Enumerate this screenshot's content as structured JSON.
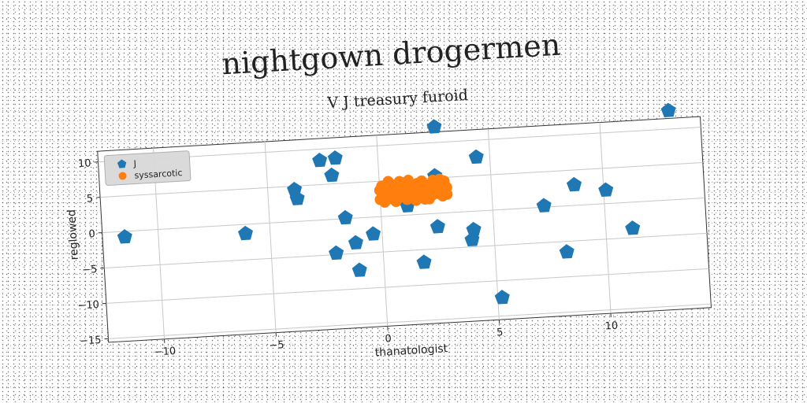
{
  "chart_data": {
    "type": "scatter",
    "title": "nightgown drogermen",
    "subtitle": "V J treasury furoid",
    "xlabel": "thanatologist",
    "ylabel": "reglowed",
    "xlim": [
      -12.5,
      14.5
    ],
    "ylim": [
      -15.5,
      11.5
    ],
    "xticks": [
      -10,
      -5,
      0,
      5,
      10
    ],
    "yticks": [
      -15,
      -10,
      -5,
      0,
      5,
      10
    ],
    "xtick_labels": [
      "−10",
      "−5",
      "0",
      "5",
      "10"
    ],
    "ytick_labels": [
      "−15",
      "−10",
      "−5",
      "0",
      "5",
      "10"
    ],
    "grid": true,
    "legend_position": "top-left",
    "series": [
      {
        "name": "J",
        "color": "#1f77b4",
        "marker": "pentagon",
        "points": [
          [
            -11.5,
            -0.8
          ],
          [
            -6.1,
            -1.3
          ],
          [
            -3.8,
            4.5
          ],
          [
            -3.7,
            3.2
          ],
          [
            -2.6,
            8.4
          ],
          [
            -1.9,
            8.6
          ],
          [
            -2.1,
            6.2
          ],
          [
            -1.6,
            0.1
          ],
          [
            -2.1,
            -4.8
          ],
          [
            -1.2,
            -3.5
          ],
          [
            -1.1,
            -7.4
          ],
          [
            -0.4,
            -2.4
          ],
          [
            1.2,
            1.3
          ],
          [
            1.8,
            -6.8
          ],
          [
            2.5,
            -1.9
          ],
          [
            2.5,
            5.3
          ],
          [
            2.6,
            12.2
          ],
          [
            4.0,
            -4.0
          ],
          [
            4.1,
            -2.6
          ],
          [
            4.4,
            7.6
          ],
          [
            5.2,
            -12.4
          ],
          [
            7.3,
            0.2
          ],
          [
            8.2,
            -6.5
          ],
          [
            8.7,
            2.9
          ],
          [
            10.1,
            1.9
          ],
          [
            11.2,
            -3.7
          ],
          [
            13.1,
            12.6
          ]
        ]
      },
      {
        "name": "syssarcotic",
        "color": "#ff7f0e",
        "marker": "circle",
        "points": [
          [
            0.0,
            2.4
          ],
          [
            0.1,
            3.2
          ],
          [
            0.2,
            4.1
          ],
          [
            0.3,
            2.8
          ],
          [
            0.4,
            3.6
          ],
          [
            0.5,
            4.5
          ],
          [
            0.6,
            2.3
          ],
          [
            0.7,
            3.0
          ],
          [
            0.8,
            3.9
          ],
          [
            0.9,
            2.6
          ],
          [
            1.0,
            3.4
          ],
          [
            1.1,
            4.6
          ],
          [
            1.2,
            2.2
          ],
          [
            1.3,
            3.1
          ],
          [
            1.4,
            4.0
          ],
          [
            1.5,
            2.7
          ],
          [
            1.6,
            3.5
          ],
          [
            1.7,
            4.4
          ],
          [
            1.8,
            2.4
          ],
          [
            1.9,
            3.3
          ],
          [
            2.0,
            4.2
          ],
          [
            2.1,
            2.9
          ],
          [
            2.2,
            3.7
          ],
          [
            2.3,
            2.5
          ],
          [
            2.4,
            3.2
          ],
          [
            2.5,
            4.1
          ],
          [
            2.6,
            2.8
          ],
          [
            2.7,
            3.6
          ],
          [
            2.8,
            2.4
          ],
          [
            2.9,
            3.0
          ],
          [
            3.0,
            2.6
          ],
          [
            0.2,
            2.0
          ],
          [
            0.5,
            3.4
          ],
          [
            0.9,
            4.8
          ],
          [
            1.3,
            4.9
          ],
          [
            1.6,
            2.0
          ],
          [
            2.0,
            2.1
          ],
          [
            2.4,
            4.7
          ],
          [
            2.7,
            4.8
          ],
          [
            0.0,
            3.7
          ],
          [
            0.4,
            4.9
          ],
          [
            0.7,
            2.0
          ],
          [
            1.1,
            2.9
          ],
          [
            1.5,
            3.8
          ],
          [
            1.9,
            4.7
          ],
          [
            2.2,
            2.1
          ],
          [
            2.6,
            3.3
          ],
          [
            2.9,
            4.5
          ],
          [
            3.0,
            3.6
          ],
          [
            0.1,
            4.3
          ]
        ]
      }
    ]
  }
}
